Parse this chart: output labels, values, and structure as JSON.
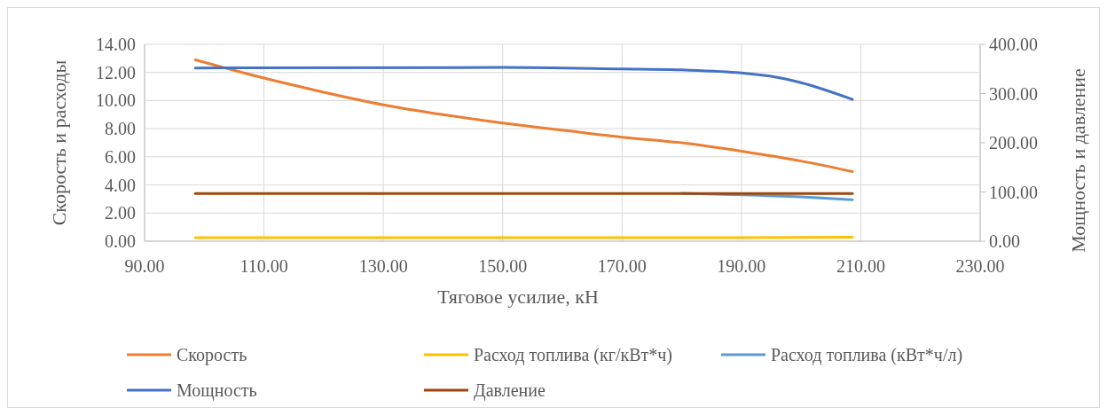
{
  "chart_data": {
    "type": "line",
    "xlabel": "Тяговое усилие, кН",
    "ylabel": "Скорость и расходы",
    "y2label": "Мощность и давление",
    "xlim": [
      90,
      230
    ],
    "xticks": [
      {
        "value": 90,
        "label": "90.00"
      },
      {
        "value": 110,
        "label": "110.00"
      },
      {
        "value": 130,
        "label": "130.00"
      },
      {
        "value": 150,
        "label": "150.00"
      },
      {
        "value": 170,
        "label": "170.00"
      },
      {
        "value": 190,
        "label": "190.00"
      },
      {
        "value": 210,
        "label": "210.00"
      },
      {
        "value": 230,
        "label": "230.00"
      }
    ],
    "ylim": [
      0,
      14
    ],
    "yticks": [
      {
        "value": 0,
        "label": "0.00"
      },
      {
        "value": 2,
        "label": "2.00"
      },
      {
        "value": 4,
        "label": "4.00"
      },
      {
        "value": 6,
        "label": "6.00"
      },
      {
        "value": 8,
        "label": "8.00"
      },
      {
        "value": 10,
        "label": "10.00"
      },
      {
        "value": 12,
        "label": "12.00"
      },
      {
        "value": 14,
        "label": "14.00"
      }
    ],
    "y2lim": [
      0,
      400
    ],
    "y2ticks": [
      {
        "value": 0,
        "label": "0.00"
      },
      {
        "value": 100,
        "label": "100.00"
      },
      {
        "value": 200,
        "label": "200.00"
      },
      {
        "value": 300,
        "label": "300.00"
      },
      {
        "value": 400,
        "label": "400.00"
      }
    ],
    "grid": true,
    "legend": "bottom",
    "marker": "none",
    "line_style": "solid",
    "series": [
      {
        "name": "Скорость",
        "color": "#ed7d31",
        "x": [
          98.5,
          110,
          120,
          130,
          140,
          150,
          160,
          170,
          180,
          190,
          200,
          208.6
        ],
        "values": [
          12.9,
          11.6,
          10.6,
          9.7,
          9.0,
          8.4,
          7.9,
          7.4,
          7.0,
          6.4,
          5.7,
          4.95
        ]
      },
      {
        "name": "Расход топлива (кг/кВт*ч)",
        "color": "#ffc000",
        "x": [
          98.5,
          150,
          190,
          208.6
        ],
        "values": [
          0.25,
          0.25,
          0.25,
          0.28
        ]
      },
      {
        "name": "Расход топлива (кВт*ч/л)",
        "color": "#5b9bd5",
        "x": [
          180,
          190,
          200,
          208.6
        ],
        "values": [
          3.4,
          3.3,
          3.15,
          2.95
        ]
      },
      {
        "name": "Мощность",
        "color": "#4472c4",
        "axis": "y2",
        "x": [
          98.5,
          150,
          170,
          180,
          190,
          195,
          200,
          208.6
        ],
        "values": [
          352,
          353,
          350,
          348,
          342,
          335,
          322,
          288
        ]
      },
      {
        "name": "Давление",
        "color": "#9e480e",
        "axis": "y2",
        "x": [
          98.5,
          150,
          208.6
        ],
        "values": [
          97,
          97,
          97
        ]
      }
    ]
  }
}
